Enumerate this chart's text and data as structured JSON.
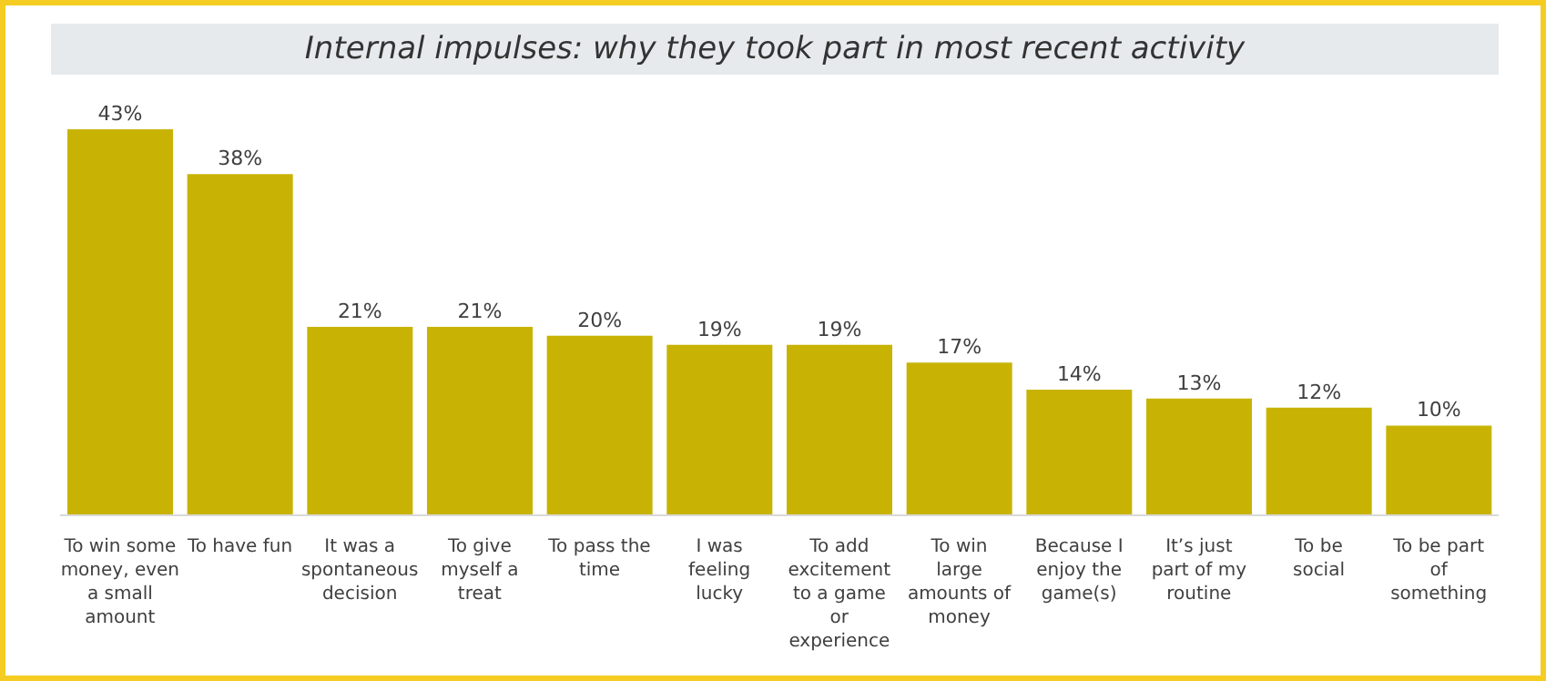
{
  "chart_data": {
    "type": "bar",
    "title": "Internal impulses: why they took part in most recent activity",
    "categories": [
      "To win some money, even a small amount",
      "To have fun",
      "It was a spontaneous decision",
      "To give myself a treat",
      "To pass the time",
      "I was feeling lucky",
      "To add excitement to a game or experience",
      "To win large amounts of money",
      "Because I enjoy the game(s)",
      "It’s just part of my routine",
      "To be social",
      "To be part of something"
    ],
    "values": [
      43,
      38,
      21,
      21,
      20,
      19,
      19,
      17,
      14,
      13,
      12,
      10
    ],
    "value_labels": [
      "43%",
      "38%",
      "21%",
      "21%",
      "20%",
      "19%",
      "19%",
      "17%",
      "14%",
      "13%",
      "12%",
      "10%"
    ],
    "color": "#c8b305",
    "legend": false,
    "grid": false
  }
}
